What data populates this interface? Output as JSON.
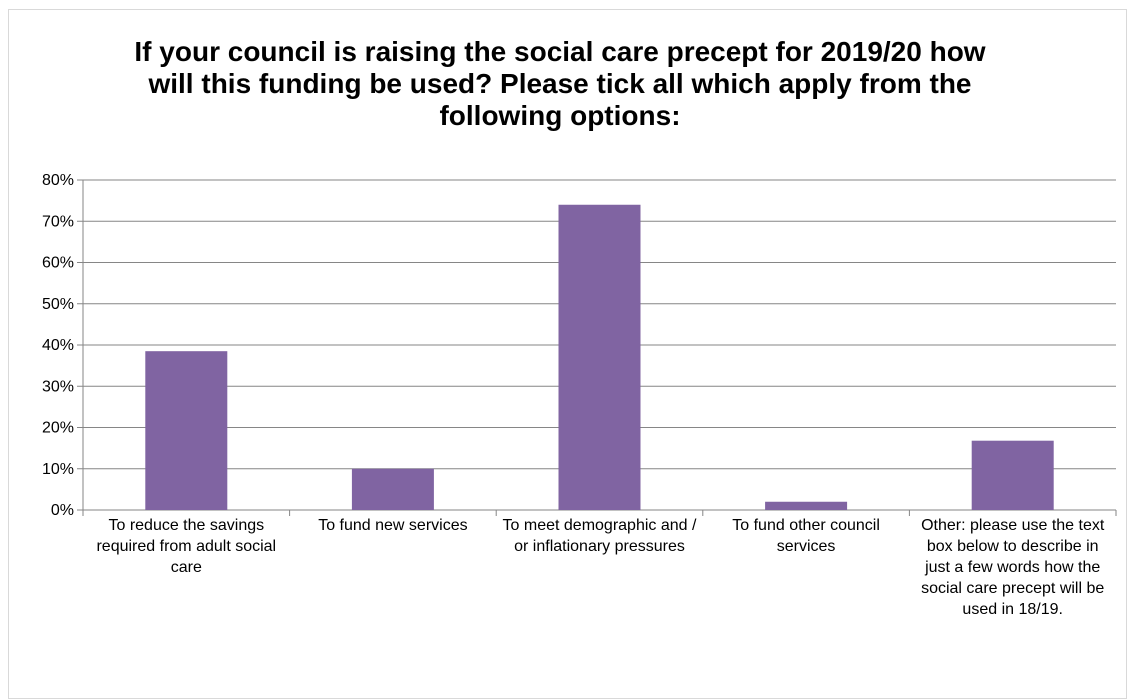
{
  "chart_data": {
    "type": "bar",
    "title": "If your council is raising the social care precept for 2019/20 how will this funding be used? Please tick all which apply from the following options:",
    "categories": [
      "To reduce the savings required from adult social care",
      "To fund new services",
      "To meet demographic and / or inflationary pressures",
      "To fund other council services",
      "Other: please use the text box below to describe in just a few words how the social care precept will be used in 18/19."
    ],
    "series": [
      {
        "values": [
          38.5,
          10,
          74,
          2,
          16.8
        ]
      }
    ],
    "ylim": [
      0,
      80
    ],
    "yticks": [
      "0%",
      "10%",
      "20%",
      "30%",
      "40%",
      "50%",
      "60%",
      "70%",
      "80%"
    ],
    "grid": true,
    "legend": "none",
    "bar_color": "#8064a2"
  }
}
